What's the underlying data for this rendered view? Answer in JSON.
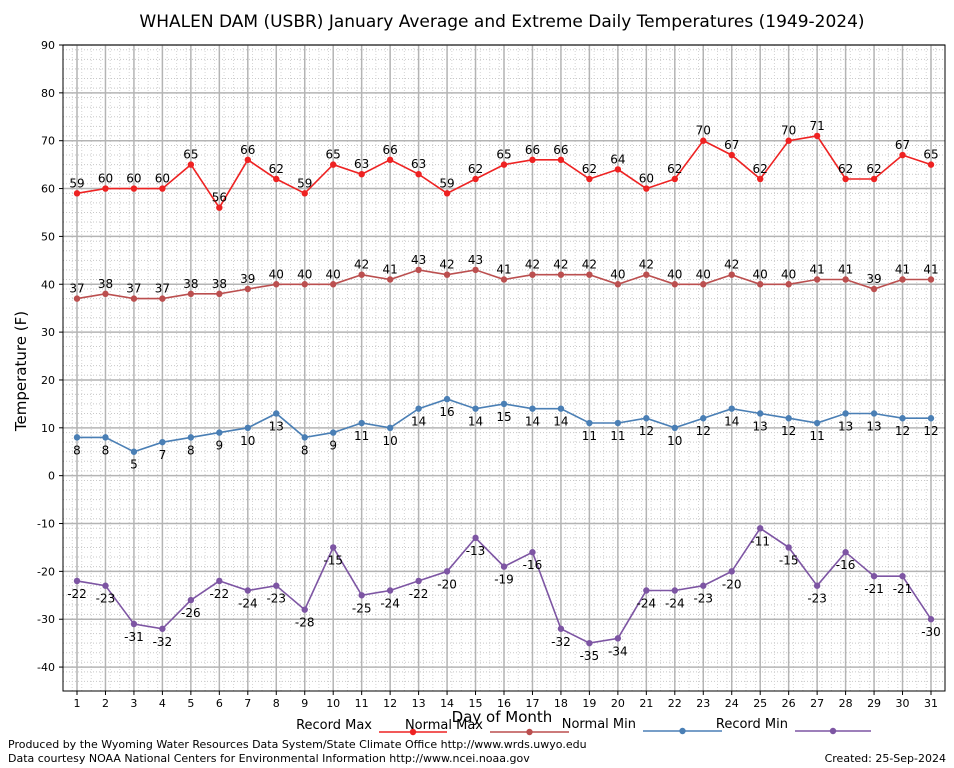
{
  "chart_data": {
    "type": "line",
    "title": "WHALEN DAM (USBR) January Average and Extreme Daily Temperatures (1949-2024)",
    "xlabel": "Day of Month",
    "ylabel": "Temperature (F)",
    "x": [
      1,
      2,
      3,
      4,
      5,
      6,
      7,
      8,
      9,
      10,
      11,
      12,
      13,
      14,
      15,
      16,
      17,
      18,
      19,
      20,
      21,
      22,
      23,
      24,
      25,
      26,
      27,
      28,
      29,
      30,
      31
    ],
    "xlim": [
      1,
      31
    ],
    "ylim": [
      -45,
      90
    ],
    "yticks": [
      -40,
      -30,
      -20,
      -10,
      0,
      10,
      20,
      30,
      40,
      50,
      60,
      70,
      80,
      90
    ],
    "grid": true,
    "legend_position": "bottom",
    "series": [
      {
        "name": "Record Max",
        "color": "#ee2222",
        "label_position": "above",
        "values": [
          59,
          60,
          60,
          60,
          65,
          56,
          66,
          62,
          59,
          65,
          63,
          66,
          63,
          59,
          62,
          65,
          66,
          66,
          62,
          64,
          60,
          62,
          70,
          67,
          62,
          70,
          71,
          62,
          62,
          67,
          65
        ]
      },
      {
        "name": "Normal Max",
        "color": "#bb4f4f",
        "label_position": "above",
        "values": [
          37,
          38,
          37,
          37,
          38,
          38,
          39,
          40,
          40,
          40,
          42,
          41,
          43,
          42,
          43,
          41,
          42,
          42,
          42,
          40,
          42,
          40,
          40,
          42,
          40,
          40,
          41,
          41,
          39,
          41,
          41
        ]
      },
      {
        "name": "Normal Min",
        "color": "#4a7fb5",
        "label_position": "below",
        "values": [
          8,
          8,
          5,
          7,
          8,
          9,
          10,
          13,
          8,
          9,
          11,
          10,
          14,
          16,
          14,
          15,
          14,
          14,
          11,
          11,
          12,
          10,
          12,
          14,
          13,
          12,
          11,
          13,
          13,
          12,
          12
        ]
      },
      {
        "name": "Record Min",
        "color": "#7d55a3",
        "label_position": "below",
        "values": [
          -22,
          -23,
          -31,
          -32,
          -26,
          -22,
          -24,
          -23,
          -28,
          -15,
          -25,
          -24,
          -22,
          -20,
          -13,
          -19,
          -16,
          -32,
          -35,
          -34,
          -24,
          -24,
          -23,
          -20,
          -11,
          -15,
          -23,
          -16,
          -21,
          -21,
          -30
        ]
      }
    ]
  },
  "footer": {
    "line1": "Produced by the Wyoming Water Resources Data System/State Climate Office http://www.wrds.uwyo.edu",
    "line2": "Data courtesy NOAA National Centers for Environmental Information http://www.ncei.noaa.gov",
    "created": "Created:  25-Sep-2024"
  }
}
